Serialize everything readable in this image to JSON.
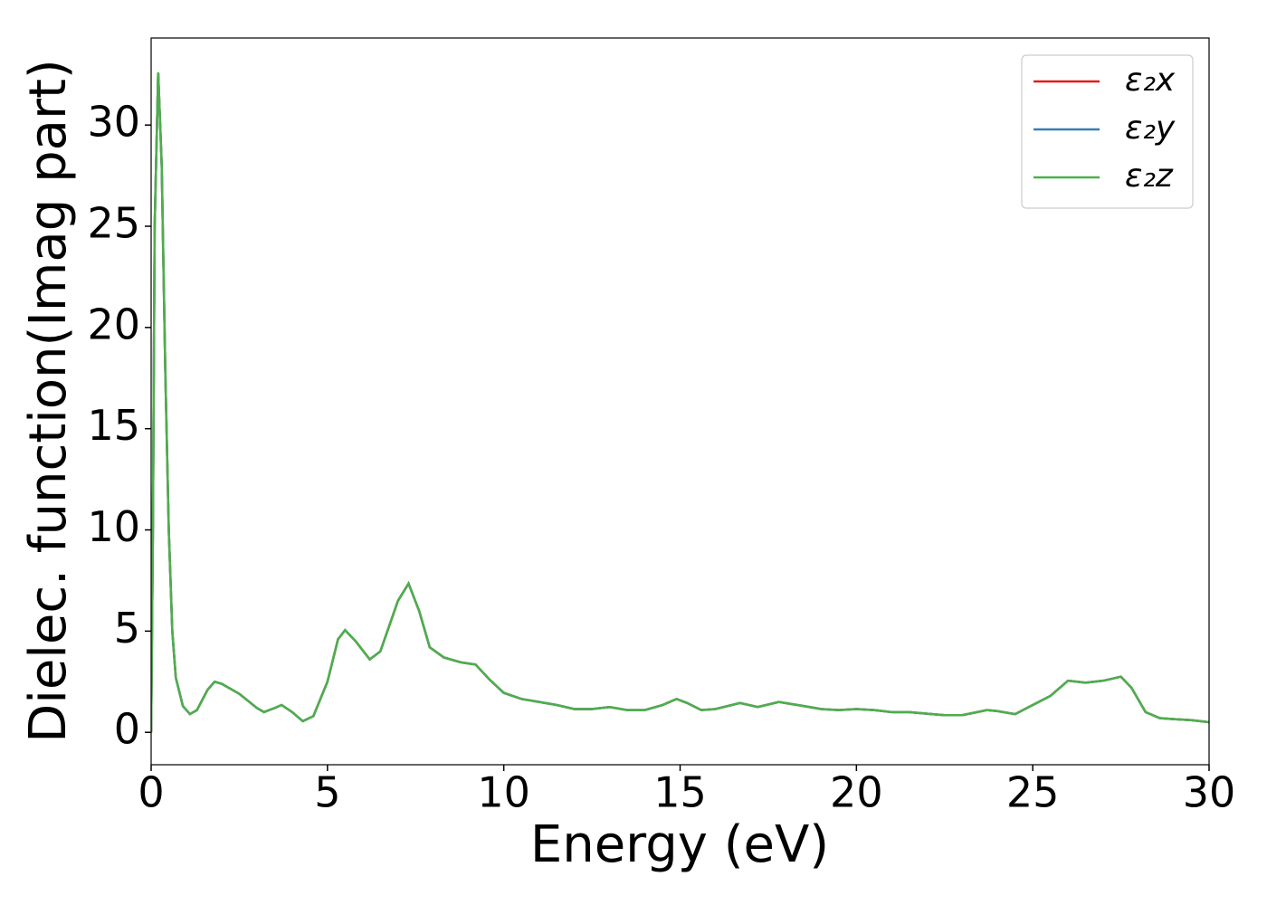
{
  "chart_data": {
    "type": "line",
    "x_label": "Energy (eV)",
    "y_label": "Dielec. function(Imag part)",
    "x": [
      0,
      0.05,
      0.1,
      0.2,
      0.3,
      0.4,
      0.5,
      0.6,
      0.7,
      0.9,
      1.1,
      1.3,
      1.6,
      1.8,
      2.0,
      2.5,
      3.0,
      3.2,
      3.5,
      3.7,
      4.0,
      4.3,
      4.6,
      5.0,
      5.3,
      5.5,
      5.8,
      6.2,
      6.5,
      7.0,
      7.3,
      7.6,
      7.9,
      8.3,
      8.8,
      9.2,
      9.6,
      10.0,
      10.5,
      11.0,
      11.5,
      12.0,
      12.5,
      13.0,
      13.5,
      14.0,
      14.5,
      14.9,
      15.2,
      15.6,
      16.0,
      16.7,
      17.2,
      17.8,
      18.5,
      19.0,
      19.5,
      20.0,
      20.5,
      21.0,
      21.5,
      22.0,
      22.5,
      23.0,
      23.7,
      24.0,
      24.5,
      25.0,
      25.5,
      26.0,
      26.5,
      27.0,
      27.5,
      27.8,
      28.2,
      28.6,
      29.0,
      29.5,
      30.0
    ],
    "series": [
      {
        "name": "ε₂x",
        "color": "#e41a1c",
        "values": [
          0,
          10,
          25,
          32.6,
          28,
          18,
          10,
          5,
          2.7,
          1.3,
          0.9,
          1.1,
          2.1,
          2.5,
          2.4,
          1.9,
          1.2,
          1.0,
          1.2,
          1.35,
          1.0,
          0.55,
          0.8,
          2.5,
          4.6,
          5.05,
          4.5,
          3.6,
          4.0,
          6.5,
          7.35,
          6.0,
          4.2,
          3.7,
          3.45,
          3.35,
          2.6,
          1.95,
          1.65,
          1.5,
          1.35,
          1.15,
          1.15,
          1.25,
          1.1,
          1.1,
          1.35,
          1.65,
          1.45,
          1.1,
          1.15,
          1.45,
          1.25,
          1.5,
          1.3,
          1.15,
          1.1,
          1.15,
          1.1,
          1.0,
          1.0,
          0.92,
          0.85,
          0.85,
          1.1,
          1.05,
          0.9,
          1.35,
          1.8,
          2.55,
          2.45,
          2.55,
          2.75,
          2.2,
          1.0,
          0.7,
          0.65,
          0.6,
          0.5
        ]
      },
      {
        "name": "ε₂y",
        "color": "#377eb8",
        "values": [
          0,
          10,
          25,
          32.6,
          28,
          18,
          10,
          5,
          2.7,
          1.3,
          0.9,
          1.1,
          2.1,
          2.5,
          2.4,
          1.9,
          1.2,
          1.0,
          1.2,
          1.35,
          1.0,
          0.55,
          0.8,
          2.5,
          4.6,
          5.05,
          4.5,
          3.6,
          4.0,
          6.5,
          7.35,
          6.0,
          4.2,
          3.7,
          3.45,
          3.35,
          2.6,
          1.95,
          1.65,
          1.5,
          1.35,
          1.15,
          1.15,
          1.25,
          1.1,
          1.1,
          1.35,
          1.65,
          1.45,
          1.1,
          1.15,
          1.45,
          1.25,
          1.5,
          1.3,
          1.15,
          1.1,
          1.15,
          1.1,
          1.0,
          1.0,
          0.92,
          0.85,
          0.85,
          1.1,
          1.05,
          0.9,
          1.35,
          1.8,
          2.55,
          2.45,
          2.55,
          2.75,
          2.2,
          1.0,
          0.7,
          0.65,
          0.6,
          0.5
        ]
      },
      {
        "name": "ε₂z",
        "color": "#4daf4a",
        "values": [
          0,
          10,
          25,
          32.6,
          28,
          18,
          10,
          5,
          2.7,
          1.3,
          0.9,
          1.1,
          2.1,
          2.5,
          2.4,
          1.9,
          1.2,
          1.0,
          1.2,
          1.35,
          1.0,
          0.55,
          0.8,
          2.5,
          4.6,
          5.05,
          4.5,
          3.6,
          4.0,
          6.5,
          7.35,
          6.0,
          4.2,
          3.7,
          3.45,
          3.35,
          2.6,
          1.95,
          1.65,
          1.5,
          1.35,
          1.15,
          1.15,
          1.25,
          1.1,
          1.1,
          1.35,
          1.65,
          1.45,
          1.1,
          1.15,
          1.45,
          1.25,
          1.5,
          1.3,
          1.15,
          1.1,
          1.15,
          1.1,
          1.0,
          1.0,
          0.92,
          0.85,
          0.85,
          1.1,
          1.05,
          0.9,
          1.35,
          1.8,
          2.55,
          2.45,
          2.55,
          2.75,
          2.2,
          1.0,
          0.7,
          0.65,
          0.6,
          0.5
        ]
      }
    ],
    "xlim": [
      0,
      30
    ],
    "xticks": [
      0,
      5,
      10,
      15,
      20,
      25,
      30
    ],
    "ylim": [
      -1.6,
      34.3
    ],
    "yticks": [
      0,
      5,
      10,
      15,
      20,
      25,
      30
    ],
    "legend": "upper right"
  }
}
